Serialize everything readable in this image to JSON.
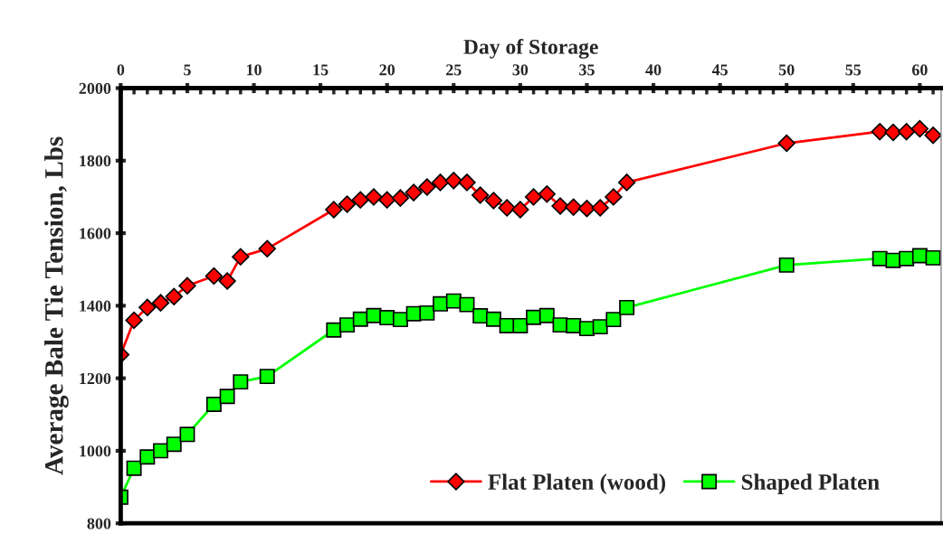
{
  "chart_data": {
    "type": "line",
    "xlabel": "Day of Storage",
    "ylabel": "Average Bale Tie Tension, Lbs",
    "x": [
      0,
      1,
      2,
      3,
      4,
      5,
      7,
      8,
      9,
      11,
      16,
      17,
      18,
      19,
      20,
      21,
      22,
      23,
      24,
      25,
      26,
      27,
      28,
      29,
      30,
      31,
      32,
      33,
      34,
      35,
      36,
      37,
      38,
      50,
      57,
      58,
      59,
      60,
      61
    ],
    "series": [
      {
        "name": "Flat Platen (wood)",
        "color": "#ff0000",
        "marker": "diamond",
        "values": [
          1265,
          1360,
          1395,
          1408,
          1425,
          1455,
          1482,
          1468,
          1535,
          1557,
          1665,
          1680,
          1692,
          1700,
          1692,
          1697,
          1712,
          1727,
          1740,
          1745,
          1740,
          1705,
          1690,
          1670,
          1665,
          1700,
          1708,
          1675,
          1672,
          1668,
          1670,
          1700,
          1740,
          1848,
          1880,
          1878,
          1880,
          1888,
          1870
        ]
      },
      {
        "name": "Shaped Platen",
        "color": "#00ff00",
        "marker": "square",
        "values": [
          872,
          952,
          983,
          1000,
          1018,
          1045,
          1128,
          1150,
          1190,
          1205,
          1333,
          1347,
          1363,
          1373,
          1367,
          1362,
          1378,
          1380,
          1405,
          1413,
          1403,
          1372,
          1363,
          1345,
          1345,
          1368,
          1373,
          1347,
          1345,
          1337,
          1342,
          1362,
          1395,
          1512,
          1530,
          1525,
          1530,
          1538,
          1532
        ]
      }
    ],
    "xlim": [
      0,
      61.6
    ],
    "xticks": [
      0,
      5,
      10,
      15,
      20,
      25,
      30,
      35,
      40,
      45,
      50,
      55,
      60
    ],
    "ylim": [
      800,
      2000
    ],
    "yticks": [
      800,
      1000,
      1200,
      1400,
      1600,
      1800,
      2000
    ],
    "grid": false,
    "legend": "bottom right",
    "line_style": "solid"
  }
}
